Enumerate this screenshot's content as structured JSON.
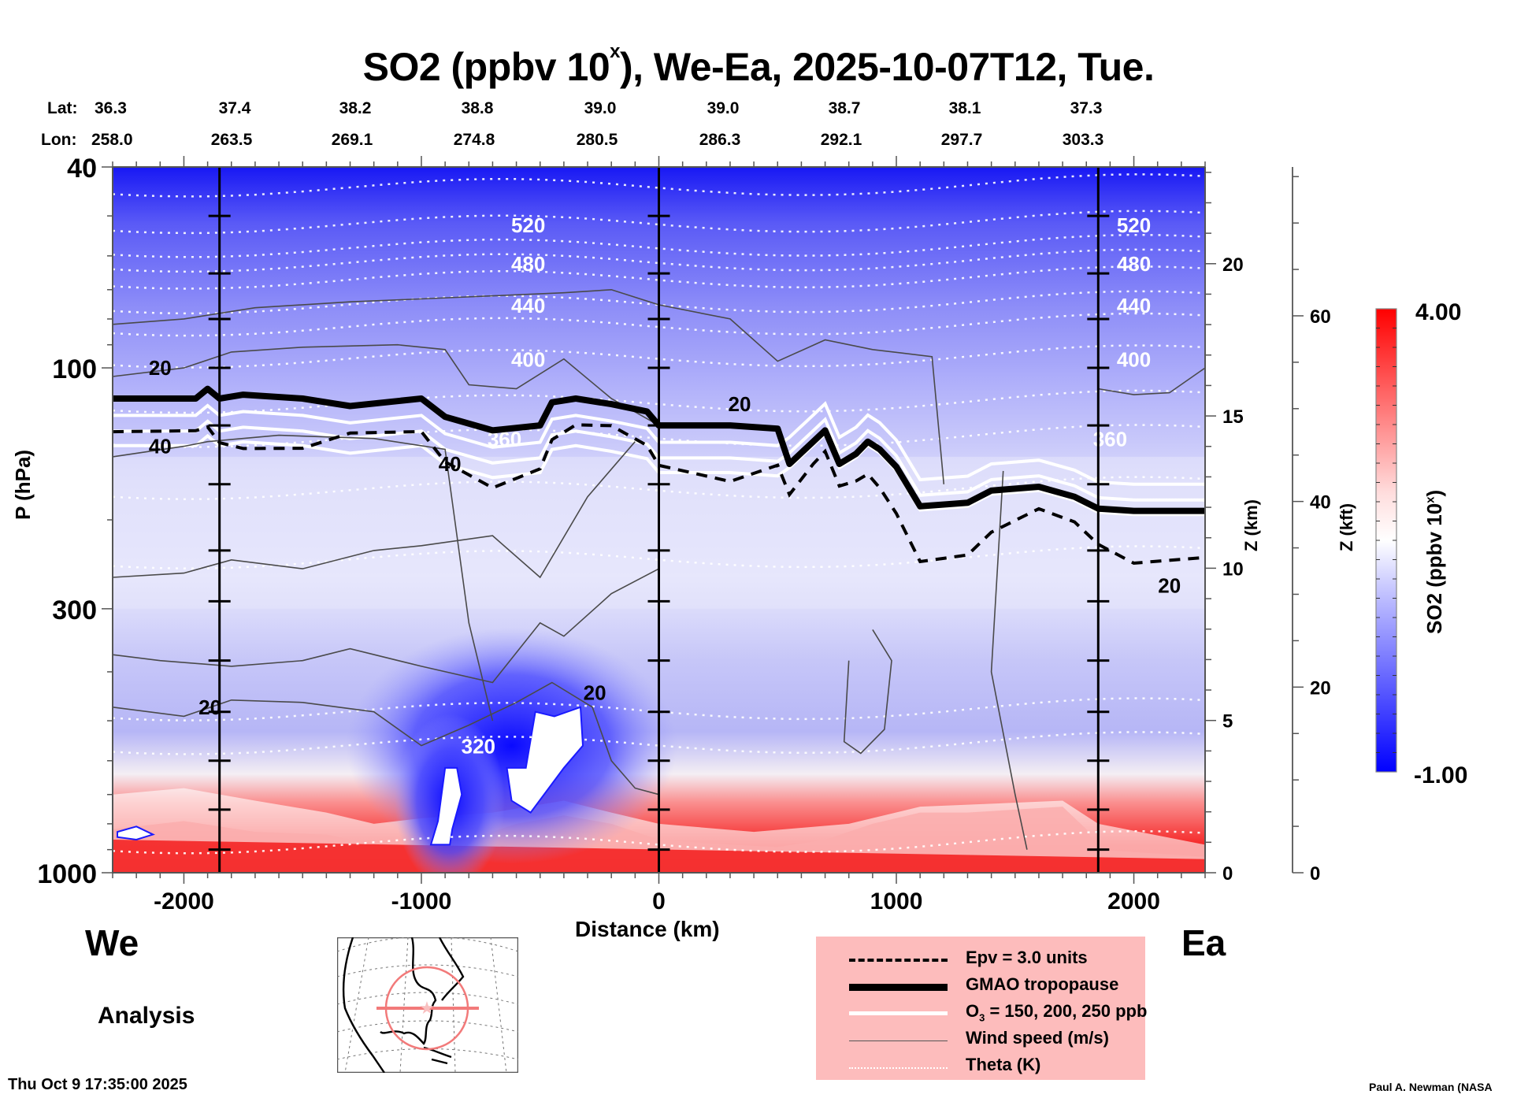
{
  "title": {
    "main": "SO2 (ppbv 10",
    "sup": "x",
    "rest": "), We-Ea, 2025-10-07T12, Tue."
  },
  "latlon": {
    "lat_label": "Lat:",
    "lon_label": "Lon:",
    "lat": [
      "36.3",
      "37.4",
      "38.2",
      "38.8",
      "39.0",
      "39.0",
      "38.7",
      "38.1",
      "37.3"
    ],
    "lon": [
      "258.0",
      "263.5",
      "269.1",
      "274.8",
      "280.5",
      "286.3",
      "292.1",
      "297.7",
      "303.3"
    ]
  },
  "labels": {
    "west": "We",
    "east": "Ea",
    "analysis": "Analysis",
    "timestamp": "Thu Oct  9 17:35:00 2025",
    "credit": "Paul A. Newman (NASA"
  },
  "legend": {
    "items": [
      {
        "label": "Epv = 3.0 units",
        "style": "dashed-black"
      },
      {
        "label": "GMAO tropopause",
        "style": "thick-black"
      },
      {
        "label": "O3 = 150, 200, 250 ppb",
        "style": "white"
      },
      {
        "label": "Wind speed (m/s)",
        "style": "thin-gray"
      },
      {
        "label": "Theta (K)",
        "style": "dotted-white"
      }
    ]
  },
  "colors": {
    "legend_bg": "#fdbcbc",
    "cmap_low": "#0000ff",
    "cmap_mid": "#ffffff",
    "cmap_high": "#ff0000",
    "map_circle": "#f27a7a"
  },
  "chart_data": {
    "type": "heatmap",
    "title": "SO2 (ppbv 10^x), We-Ea, 2025-10-07T12, Tue.",
    "xlabel": "Distance (km)",
    "ylabel": "P (hPa)",
    "xlim": [
      -2300,
      2300
    ],
    "ylim": [
      1000,
      40
    ],
    "yscale": "log",
    "x_ticks": [
      -2000,
      -1000,
      0,
      1000,
      2000
    ],
    "x_tick_labels": [
      "-2000",
      "-1000",
      "0",
      "1000",
      "2000"
    ],
    "y_ticks": [
      40,
      100,
      300,
      1000
    ],
    "y_tick_labels": [
      "40",
      "100",
      "300",
      "1000"
    ],
    "right_axis_km": {
      "label": "Z (km)",
      "ticks": [
        0,
        5,
        10,
        15,
        20
      ],
      "tick_labels": [
        "0",
        "5",
        "10",
        "15",
        "20"
      ]
    },
    "right_axis_kft": {
      "label": "Z (kft)",
      "ticks": [
        0,
        20,
        40,
        60
      ],
      "tick_labels": [
        "0",
        "20",
        "40",
        "60"
      ]
    },
    "colorbar": {
      "label": "SO2 (ppbv 10^x)",
      "min": -1.0,
      "max": 4.0,
      "min_label": "-1.00",
      "max_label": "4.00"
    },
    "vertical_markers_km": [
      -1850,
      0,
      1850
    ],
    "theta_contours_K": [
      {
        "value": 520,
        "p": 52
      },
      {
        "value": 480,
        "p": 62
      },
      {
        "value": 440,
        "p": 75
      },
      {
        "value": 400,
        "p": 96
      },
      {
        "value": 360,
        "p": 138
      },
      {
        "value": 320,
        "p": 560
      }
    ],
    "theta_extra_lines_p": [
      44,
      58,
      67,
      83,
      118,
      175,
      240,
      480,
      880
    ],
    "wind_labels": [
      {
        "value": "20",
        "x_km": -2100,
        "p": 100
      },
      {
        "value": "40",
        "x_km": -2100,
        "p": 143
      },
      {
        "value": "40",
        "x_km": -880,
        "p": 155
      },
      {
        "value": "20",
        "x_km": 340,
        "p": 118
      },
      {
        "value": "20",
        "x_km": -1890,
        "p": 470
      },
      {
        "value": "20",
        "x_km": -270,
        "p": 440
      },
      {
        "value": "20",
        "x_km": 2150,
        "p": 270
      }
    ],
    "tropopause_p": [
      [
        -2300,
        115
      ],
      [
        -1950,
        115
      ],
      [
        -1900,
        110
      ],
      [
        -1850,
        115
      ],
      [
        -1750,
        113
      ],
      [
        -1500,
        115
      ],
      [
        -1300,
        119
      ],
      [
        -1000,
        115
      ],
      [
        -900,
        125
      ],
      [
        -700,
        133
      ],
      [
        -500,
        130
      ],
      [
        -450,
        117
      ],
      [
        -350,
        115
      ],
      [
        -200,
        118
      ],
      [
        -50,
        122
      ],
      [
        0,
        130
      ],
      [
        300,
        130
      ],
      [
        500,
        132
      ],
      [
        550,
        155
      ],
      [
        650,
        140
      ],
      [
        700,
        133
      ],
      [
        760,
        155
      ],
      [
        830,
        148
      ],
      [
        880,
        140
      ],
      [
        930,
        145
      ],
      [
        1000,
        157
      ],
      [
        1100,
        188
      ],
      [
        1300,
        185
      ],
      [
        1400,
        175
      ],
      [
        1600,
        172
      ],
      [
        1750,
        180
      ],
      [
        1850,
        190
      ],
      [
        2000,
        192
      ],
      [
        2300,
        192
      ]
    ],
    "so2_features": [
      {
        "desc": "stratosphere high negative (blue)",
        "region": "p < 100 hPa",
        "value": -0.6
      },
      {
        "desc": "boundary layer high (red)",
        "region": "p > 700 hPa",
        "value": 3.2
      },
      {
        "desc": "white masked blobs",
        "x_km": [
          -950,
          -380
        ],
        "p": [
          480,
          780
        ]
      }
    ]
  }
}
